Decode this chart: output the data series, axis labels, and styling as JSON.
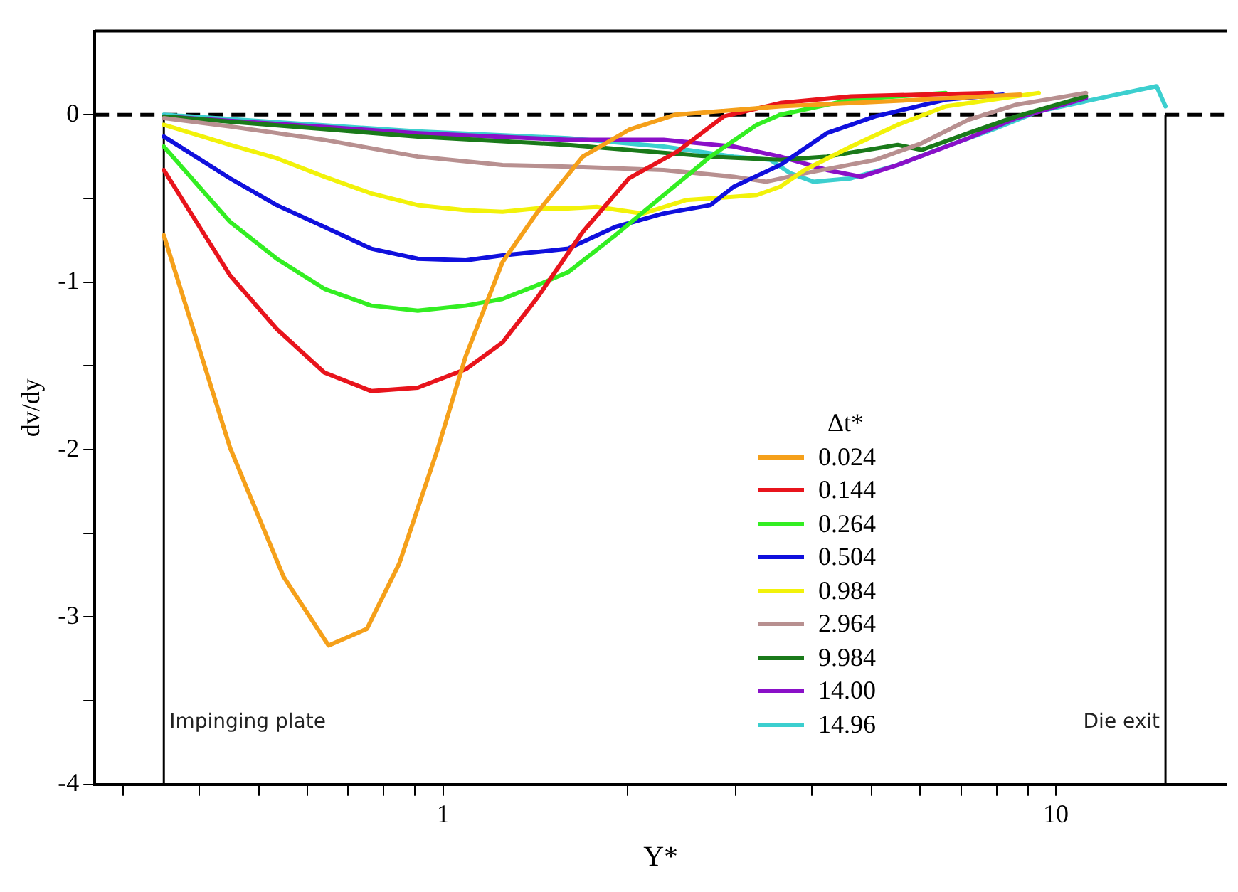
{
  "chart_data": {
    "type": "line",
    "xlabel": "Y*",
    "ylabel": "dv/dy",
    "legend_title": "Δt*",
    "log": "x",
    "grid": false,
    "legend": "right",
    "marker": "none",
    "line_style": "solid",
    "xlim": [
      0.27,
      19
    ],
    "ylim": [
      -4,
      0.5
    ],
    "xticks": [
      {
        "value": 0.3,
        "label": null
      },
      {
        "value": 0.4,
        "label": null
      },
      {
        "value": 0.5,
        "label": null
      },
      {
        "value": 0.6,
        "label": null
      },
      {
        "value": 0.7,
        "label": null
      },
      {
        "value": 0.8,
        "label": null
      },
      {
        "value": 0.9,
        "label": null
      },
      1,
      {
        "value": 2,
        "label": null
      },
      {
        "value": 3,
        "label": null
      },
      {
        "value": 4,
        "label": null
      },
      {
        "value": 5,
        "label": null
      },
      {
        "value": 6,
        "label": null
      },
      {
        "value": 7,
        "label": null
      },
      {
        "value": 8,
        "label": null
      },
      {
        "value": 9,
        "label": null
      },
      10
    ],
    "yticks": [
      -4,
      {
        "value": -3.5,
        "label": null
      },
      -3,
      {
        "value": -2.5,
        "label": null
      },
      -2,
      {
        "value": -1.5,
        "label": null
      },
      -1,
      {
        "value": -0.5,
        "label": null
      },
      0
    ],
    "ref_lines": [
      {
        "axis": "y",
        "value": 0,
        "line_style": "dashed",
        "color": "#000000"
      },
      {
        "axis": "x",
        "value": 0.35,
        "label": "Impinging plate",
        "color": "#000000"
      },
      {
        "axis": "x",
        "value": 15.1,
        "label": "Die exit",
        "color": "#000000"
      }
    ],
    "series": [
      {
        "name": "0.024",
        "color": "#f5a01a",
        "x": [
          0.35,
          0.397,
          0.449,
          0.549,
          0.65,
          0.751,
          0.848,
          0.979,
          1.089,
          1.25,
          1.42,
          1.69,
          2.01,
          2.39,
          3.55,
          6.04,
          8.75
        ],
        "values": [
          -0.72,
          -1.36,
          -1.99,
          -2.76,
          -3.17,
          -3.07,
          -2.68,
          -2.0,
          -1.44,
          -0.88,
          -0.59,
          -0.25,
          -0.09,
          0.0,
          0.05,
          0.09,
          0.12
        ]
      },
      {
        "name": "0.144",
        "color": "#e8141c",
        "x": [
          0.35,
          0.449,
          0.535,
          0.64,
          0.763,
          0.909,
          1.089,
          1.25,
          1.42,
          1.69,
          2.01,
          2.41,
          2.87,
          3.55,
          4.63,
          7.87
        ],
        "values": [
          -0.33,
          -0.96,
          -1.28,
          -1.54,
          -1.65,
          -1.63,
          -1.52,
          -1.36,
          -1.1,
          -0.7,
          -0.38,
          -0.22,
          -0.01,
          0.07,
          0.11,
          0.13
        ]
      },
      {
        "name": "0.264",
        "color": "#33ee22",
        "x": [
          0.35,
          0.449,
          0.535,
          0.64,
          0.763,
          0.909,
          1.089,
          1.25,
          1.42,
          1.6,
          1.91,
          2.29,
          2.73,
          3.25,
          3.55,
          4.63,
          6.61
        ],
        "values": [
          -0.19,
          -0.64,
          -0.86,
          -1.04,
          -1.14,
          -1.17,
          -1.14,
          -1.1,
          -1.02,
          -0.94,
          -0.72,
          -0.48,
          -0.25,
          -0.06,
          0.0,
          0.09,
          0.13
        ]
      },
      {
        "name": "0.504",
        "color": "#1010dd",
        "x": [
          0.35,
          0.449,
          0.535,
          0.64,
          0.763,
          0.909,
          1.089,
          1.25,
          1.42,
          1.6,
          1.91,
          2.29,
          2.73,
          2.98,
          3.55,
          4.23,
          5.07,
          6.61,
          8.2
        ],
        "values": [
          -0.13,
          -0.38,
          -0.54,
          -0.67,
          -0.8,
          -0.86,
          -0.87,
          -0.84,
          -0.82,
          -0.8,
          -0.67,
          -0.59,
          -0.54,
          -0.43,
          -0.3,
          -0.11,
          -0.01,
          0.09,
          0.12
        ]
      },
      {
        "name": "0.984",
        "color": "#f2f20a",
        "x": [
          0.35,
          0.449,
          0.535,
          0.64,
          0.763,
          0.909,
          1.089,
          1.25,
          1.42,
          1.6,
          1.78,
          2.12,
          2.49,
          3.25,
          3.55,
          3.89,
          4.63,
          5.52,
          6.61,
          9.38
        ],
        "values": [
          -0.06,
          -0.18,
          -0.26,
          -0.37,
          -0.47,
          -0.54,
          -0.57,
          -0.58,
          -0.56,
          -0.56,
          -0.55,
          -0.59,
          -0.51,
          -0.48,
          -0.43,
          -0.33,
          -0.19,
          -0.06,
          0.05,
          0.13
        ]
      },
      {
        "name": "2.964",
        "color": "#b89090",
        "x": [
          0.35,
          0.449,
          0.64,
          0.909,
          1.25,
          1.6,
          2.29,
          2.98,
          3.37,
          3.89,
          5.07,
          6.04,
          7.2,
          8.62,
          11.2
        ],
        "values": [
          -0.02,
          -0.07,
          -0.15,
          -0.25,
          -0.3,
          -0.31,
          -0.33,
          -0.37,
          -0.4,
          -0.35,
          -0.27,
          -0.17,
          -0.03,
          0.06,
          0.13
        ]
      },
      {
        "name": "9.984",
        "color": "#1a7a1a",
        "x": [
          0.35,
          0.909,
          1.6,
          2.73,
          3.55,
          4.23,
          5.52,
          6.04,
          7.2,
          8.62,
          11.2
        ],
        "values": [
          -0.01,
          -0.13,
          -0.18,
          -0.25,
          -0.27,
          -0.25,
          -0.18,
          -0.21,
          -0.11,
          -0.01,
          0.11
        ]
      },
      {
        "name": "14.00",
        "color": "#8a10c8",
        "x": [
          0.35,
          0.909,
          1.6,
          2.29,
          2.98,
          3.55,
          4.23,
          4.81,
          5.52,
          7.2,
          8.62,
          11.2
        ],
        "values": [
          -0.01,
          -0.11,
          -0.15,
          -0.15,
          -0.19,
          -0.25,
          -0.33,
          -0.37,
          -0.3,
          -0.14,
          -0.02,
          0.1
        ]
      },
      {
        "name": "14.96",
        "color": "#3ccfcf",
        "x": [
          0.35,
          0.909,
          1.6,
          2.29,
          2.98,
          3.42,
          3.69,
          4.02,
          4.63,
          5.52,
          6.61,
          7.87,
          9.38,
          12.2,
          14.6,
          15.1
        ],
        "values": [
          0.0,
          -0.1,
          -0.14,
          -0.19,
          -0.25,
          -0.27,
          -0.35,
          -0.4,
          -0.38,
          -0.3,
          -0.19,
          -0.09,
          0.02,
          0.11,
          0.17,
          0.05
        ]
      }
    ]
  }
}
